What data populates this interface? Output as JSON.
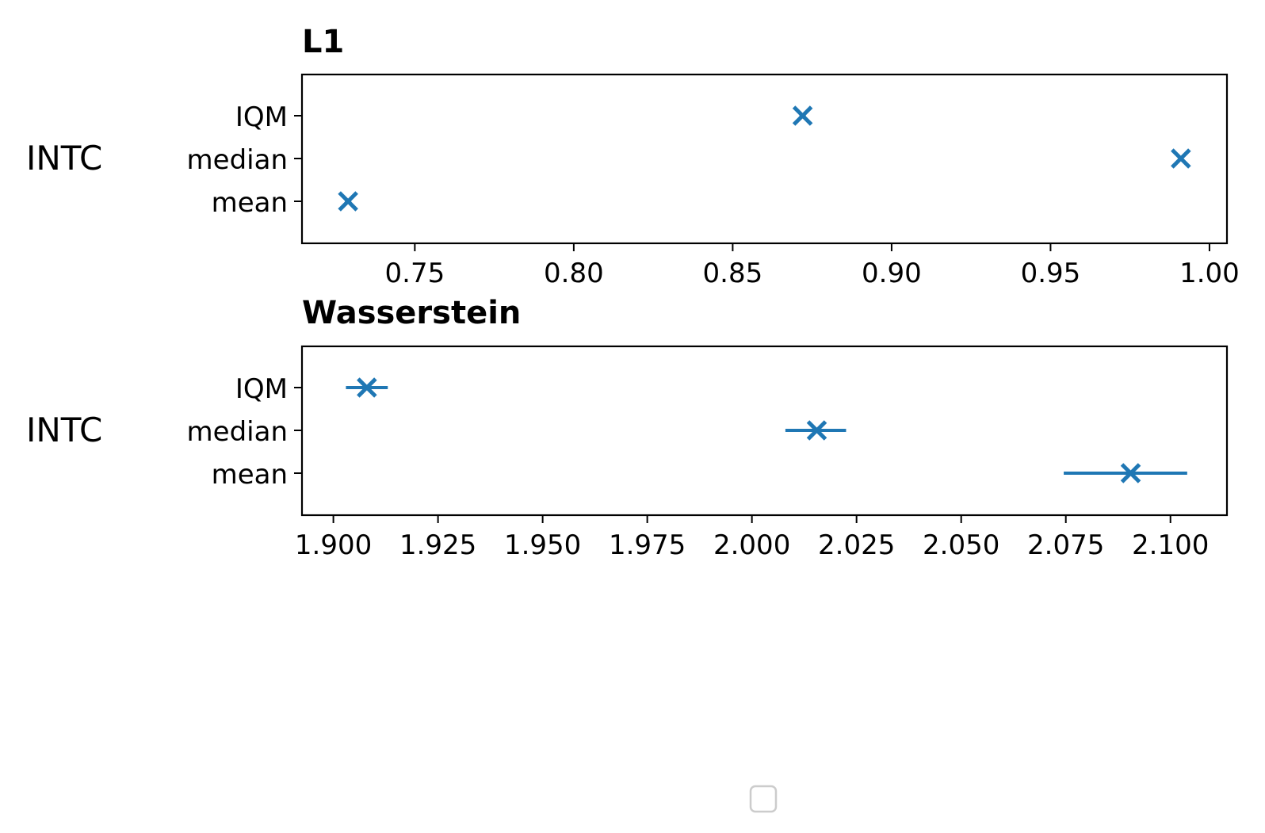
{
  "chart_data": [
    {
      "type": "scatter",
      "title": "L1",
      "ylabel": "INTC",
      "categories": [
        "IQM",
        "median",
        "mean"
      ],
      "points": [
        {
          "category": "IQM",
          "value": 0.872,
          "err_low": 0.871,
          "err_high": 0.873
        },
        {
          "category": "median",
          "value": 0.991,
          "err_low": 0.991,
          "err_high": 0.991
        },
        {
          "category": "mean",
          "value": 0.729,
          "err_low": 0.728,
          "err_high": 0.73
        }
      ],
      "xticks": [
        "0.75",
        "0.80",
        "0.85",
        "0.90",
        "0.95",
        "1.00"
      ],
      "xlim": [
        0.7145,
        1.0055
      ],
      "marker": "x",
      "color": "#1f77b4",
      "grid": false
    },
    {
      "type": "scatter",
      "title": "Wasserstein",
      "ylabel": "INTC",
      "categories": [
        "IQM",
        "median",
        "mean"
      ],
      "points": [
        {
          "category": "IQM",
          "value": 1.908,
          "err_low": 1.903,
          "err_high": 1.913
        },
        {
          "category": "median",
          "value": 2.0155,
          "err_low": 2.008,
          "err_high": 2.0225
        },
        {
          "category": "mean",
          "value": 2.0905,
          "err_low": 2.0745,
          "err_high": 2.104
        }
      ],
      "xticks": [
        "1.900",
        "1.925",
        "1.950",
        "1.975",
        "2.000",
        "2.025",
        "2.050",
        "2.075",
        "2.100"
      ],
      "xlim": [
        1.8925,
        2.1135
      ],
      "marker": "x",
      "color": "#1f77b4",
      "grid": false
    }
  ],
  "legend": {
    "entries": []
  }
}
